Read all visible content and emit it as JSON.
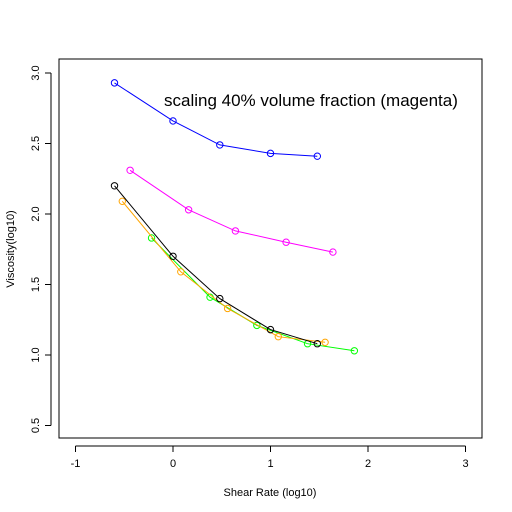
{
  "chart_data": {
    "type": "line",
    "title": "",
    "xlabel": "Shear Rate (log10)",
    "ylabel": "Viscosity(log10)",
    "xlim": [
      -1,
      3
    ],
    "ylim": [
      0.5,
      3.0
    ],
    "xticks": [
      -1,
      0,
      1,
      2,
      3
    ],
    "yticks": [
      0.5,
      1.0,
      1.5,
      2.0,
      2.5,
      3.0
    ],
    "xtick_labels": [
      "-1",
      "0",
      "1",
      "2",
      "3"
    ],
    "ytick_labels": [
      "0.5",
      "1.0",
      "1.5",
      "2.0",
      "2.5",
      "3.0"
    ],
    "grid": false,
    "annotation": "scaling 40% volume fraction (magenta)",
    "series": [
      {
        "color": "#0000ff",
        "x": [
          -0.6,
          0.0,
          0.48,
          1.0,
          1.48
        ],
        "y": [
          2.93,
          2.66,
          2.49,
          2.43,
          2.41
        ]
      },
      {
        "color": "#ff00ff",
        "x": [
          -0.44,
          0.16,
          0.64,
          1.16,
          1.64
        ],
        "y": [
          2.31,
          2.03,
          1.88,
          1.8,
          1.73
        ]
      },
      {
        "color": "#00ff00",
        "x": [
          -0.22,
          0.38,
          0.86,
          1.38,
          1.86
        ],
        "y": [
          1.83,
          1.41,
          1.21,
          1.08,
          1.03
        ]
      },
      {
        "color": "#ffa500",
        "x": [
          -0.52,
          0.08,
          0.56,
          1.08,
          1.56
        ],
        "y": [
          2.09,
          1.59,
          1.33,
          1.13,
          1.09
        ]
      },
      {
        "color": "#000000",
        "x": [
          -0.6,
          0.0,
          0.48,
          1.0,
          1.48
        ],
        "y": [
          2.2,
          1.7,
          1.4,
          1.18,
          1.08
        ]
      }
    ]
  }
}
